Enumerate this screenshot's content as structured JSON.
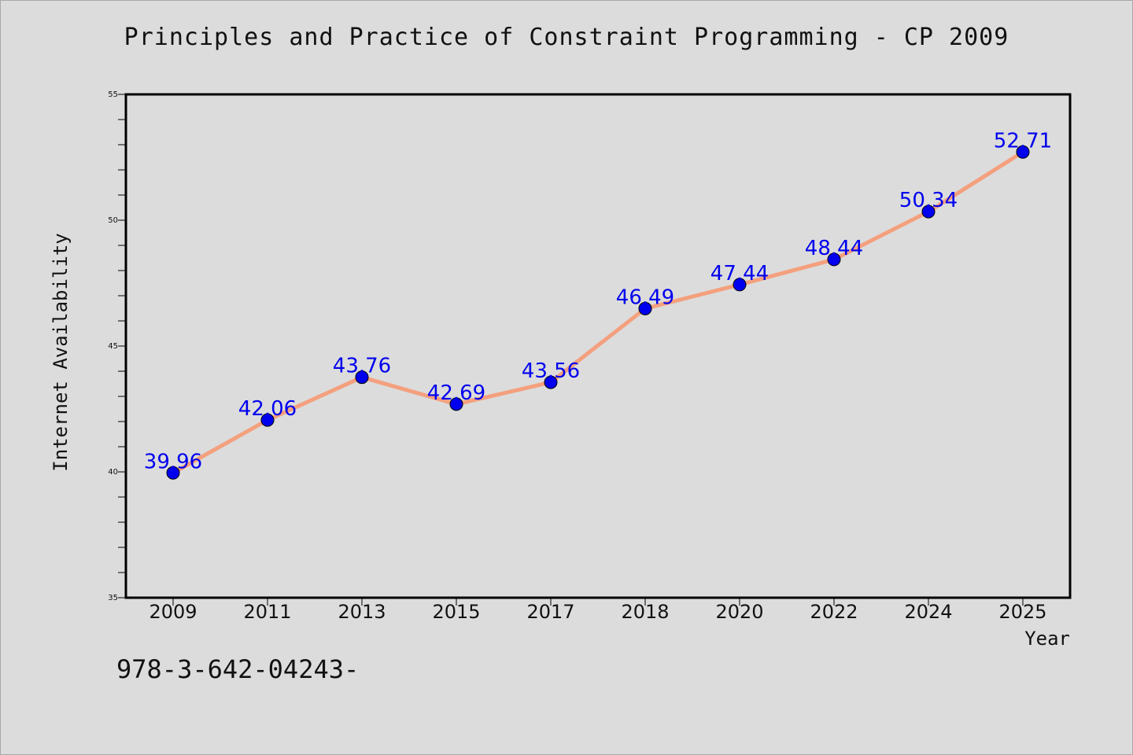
{
  "chart_data": {
    "type": "line",
    "title": "Principles and Practice of Constraint Programming - CP 2009",
    "xlabel": "Year",
    "ylabel": "Internet Availability",
    "categories": [
      "2009",
      "2011",
      "2013",
      "2015",
      "2017",
      "2018",
      "2020",
      "2022",
      "2024",
      "2025"
    ],
    "series": [
      {
        "values": [
          39.96,
          42.06,
          43.76,
          42.69,
          43.56,
          46.49,
          47.44,
          48.44,
          50.34,
          52.71
        ],
        "line_color": "#f4a07e",
        "marker_color": "#0000ee"
      }
    ],
    "data_labels": [
      "39.96",
      "42.06",
      "43.76",
      "42.69",
      "43.56",
      "46.49",
      "47.44",
      "48.44",
      "50.34",
      "52.71"
    ],
    "yticks": [
      "35",
      "40",
      "45",
      "50",
      "55"
    ],
    "ylim": [
      35,
      55
    ],
    "grid": false,
    "legend": "none"
  },
  "footer": {
    "isbn": "978-3-642-04243-"
  },
  "colors": {
    "background": "#dcdcdc",
    "plot_background": "#ffffff",
    "data_label": "#0000ee"
  }
}
